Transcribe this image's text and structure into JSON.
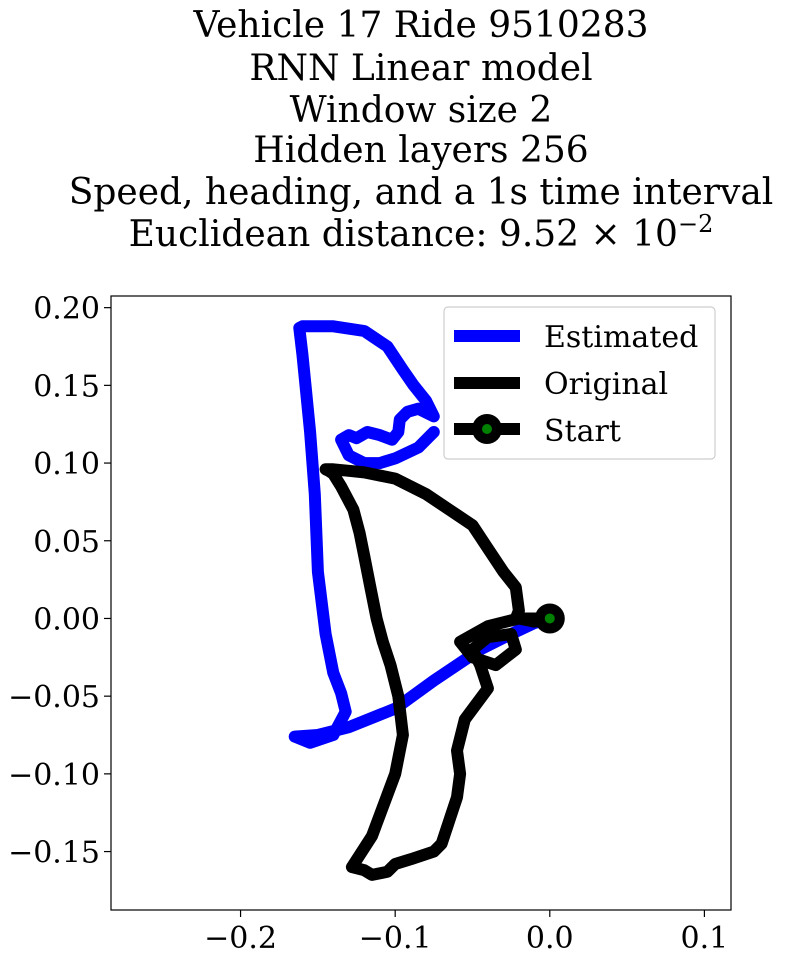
{
  "chart_data": {
    "type": "line",
    "title_lines": [
      "Vehicle 17 Ride 9510283",
      "RNN Linear model",
      "Window size 2",
      "Hidden layers 256",
      "Speed, heading, and a 1s time interval"
    ],
    "title_metric_prefix": "Euclidean distance: 9.52 × 10",
    "title_metric_exponent": "−2",
    "xlabel": "",
    "ylabel": "",
    "xlim": [
      -0.2838,
      0.1172
    ],
    "ylim": [
      -0.1876,
      0.2075
    ],
    "x_ticks": [
      -0.2,
      -0.1,
      0.0,
      0.1
    ],
    "x_tick_labels": [
      "−0.2",
      "−0.1",
      "0.0",
      "0.1"
    ],
    "y_ticks": [
      0.2,
      0.15,
      0.1,
      0.05,
      0.0,
      -0.05,
      -0.1,
      -0.15
    ],
    "y_tick_labels": [
      "0.20",
      "0.15",
      "0.10",
      "0.05",
      "0.00",
      "−0.05",
      "−0.10",
      "−0.15"
    ],
    "grid": false,
    "legend_position": "top-right",
    "colors": {
      "estimated": "#0000ff",
      "original": "#000000",
      "start_marker": "#008000"
    },
    "series": [
      {
        "name": "Estimated",
        "x": [
          0.0,
          -0.01,
          -0.025,
          -0.045,
          -0.075,
          -0.1,
          -0.13,
          -0.15,
          -0.165,
          -0.155,
          -0.14,
          -0.132,
          -0.135,
          -0.14,
          -0.145,
          -0.15,
          -0.152,
          -0.155,
          -0.158,
          -0.16,
          -0.162,
          -0.16,
          -0.155,
          -0.14,
          -0.12,
          -0.105,
          -0.095,
          -0.088,
          -0.08,
          -0.075,
          -0.085,
          -0.092,
          -0.097,
          -0.098,
          -0.102,
          -0.11,
          -0.118,
          -0.125,
          -0.13,
          -0.135,
          -0.13,
          -0.12,
          -0.11,
          -0.1,
          -0.085,
          -0.075
        ],
        "y": [
          0.0,
          -0.003,
          -0.01,
          -0.02,
          -0.04,
          -0.058,
          -0.07,
          -0.075,
          -0.076,
          -0.08,
          -0.075,
          -0.06,
          -0.048,
          -0.035,
          -0.01,
          0.03,
          0.08,
          0.12,
          0.15,
          0.17,
          0.187,
          0.188,
          0.188,
          0.188,
          0.185,
          0.175,
          0.16,
          0.15,
          0.14,
          0.13,
          0.135,
          0.133,
          0.128,
          0.12,
          0.115,
          0.118,
          0.12,
          0.116,
          0.118,
          0.115,
          0.105,
          0.1,
          0.1,
          0.103,
          0.11,
          0.12
        ]
      },
      {
        "name": "Original",
        "x": [
          0.0,
          -0.01,
          -0.02,
          -0.04,
          -0.058,
          -0.05,
          -0.035,
          -0.022,
          -0.025,
          -0.04,
          -0.05,
          -0.045,
          -0.04,
          -0.055,
          -0.06,
          -0.058,
          -0.06,
          -0.065,
          -0.07,
          -0.075,
          -0.09,
          -0.1,
          -0.105,
          -0.115,
          -0.12,
          -0.128,
          -0.115,
          -0.1,
          -0.095,
          -0.098,
          -0.103,
          -0.108,
          -0.112,
          -0.116,
          -0.12,
          -0.123,
          -0.127,
          -0.135,
          -0.14,
          -0.143,
          -0.145,
          -0.14,
          -0.13,
          -0.12,
          -0.1,
          -0.08,
          -0.065,
          -0.05,
          -0.04,
          -0.03,
          -0.022,
          -0.02,
          -0.022,
          -0.018,
          -0.005,
          0.0
        ],
        "y": [
          0.0,
          -0.002,
          0.0,
          -0.005,
          -0.015,
          -0.025,
          -0.03,
          -0.02,
          -0.01,
          -0.012,
          -0.02,
          -0.03,
          -0.045,
          -0.065,
          -0.085,
          -0.1,
          -0.115,
          -0.13,
          -0.145,
          -0.15,
          -0.155,
          -0.158,
          -0.163,
          -0.165,
          -0.162,
          -0.16,
          -0.14,
          -0.1,
          -0.075,
          -0.05,
          -0.03,
          -0.015,
          0.0,
          0.02,
          0.04,
          0.055,
          0.07,
          0.085,
          0.093,
          0.095,
          0.096,
          0.096,
          0.095,
          0.094,
          0.09,
          0.08,
          0.07,
          0.06,
          0.045,
          0.03,
          0.02,
          0.005,
          0.0,
          0.0,
          0.0,
          0.0
        ]
      }
    ],
    "start_point": {
      "name": "Start",
      "x": 0.0,
      "y": 0.0
    },
    "legend": [
      "Estimated",
      "Original",
      "Start"
    ]
  }
}
